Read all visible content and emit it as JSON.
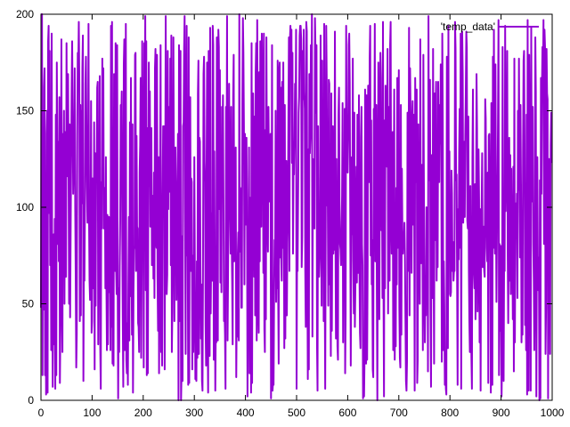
{
  "chart_data": {
    "type": "line",
    "title": "",
    "xlabel": "",
    "ylabel": "",
    "xlim": [
      0,
      1000
    ],
    "ylim": [
      0,
      200
    ],
    "x_ticks": [
      0,
      100,
      200,
      300,
      400,
      500,
      600,
      700,
      800,
      900,
      1000
    ],
    "y_ticks": [
      0,
      50,
      100,
      150,
      200
    ],
    "grid": false,
    "legend_position": "top-right",
    "series": [
      {
        "name": "'temp_data'",
        "color": "#9400d3",
        "description_of_values": "1000 samples, each an integer in 0–200, approximately uniformly random",
        "x_start": 0,
        "x_step": 1,
        "count": 1000,
        "sample_values": [
          48,
          200,
          200,
          13,
          122,
          47,
          162,
          172,
          13,
          80,
          3,
          138,
          150,
          4,
          186,
          194,
          97,
          181,
          70,
          125,
          26,
          190,
          62,
          7,
          50,
          86,
          29,
          94,
          6,
          148
        ]
      }
    ]
  },
  "legend": {
    "label": "'temp_data'"
  }
}
